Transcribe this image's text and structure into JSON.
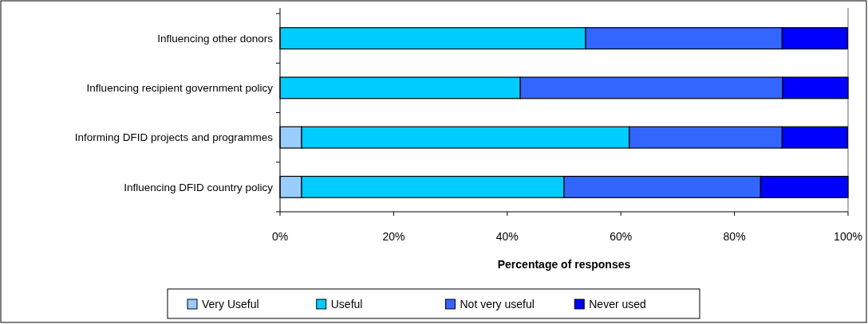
{
  "chart_data": {
    "type": "bar",
    "orientation": "horizontal",
    "stacked": true,
    "categories": [
      "Influencing other donors",
      "Influencing recipient government policy",
      "Informing DFID projects and programmes",
      "Influencing DFID country policy"
    ],
    "series": [
      {
        "name": "Very Useful",
        "color": "#99ccff",
        "values": [
          0,
          0,
          3.8,
          3.8
        ]
      },
      {
        "name": "Useful",
        "color": "#00ccff",
        "values": [
          53.8,
          42.3,
          57.7,
          46.2
        ]
      },
      {
        "name": "Not very useful",
        "color": "#3366ff",
        "values": [
          34.6,
          46.2,
          26.9,
          34.6
        ]
      },
      {
        "name": "Never used",
        "color": "#0000ff",
        "values": [
          11.5,
          11.5,
          11.5,
          15.4
        ]
      }
    ],
    "xlim": [
      0,
      100
    ],
    "xticks": [
      {
        "value": 0,
        "label": "0%"
      },
      {
        "value": 20,
        "label": "20%"
      },
      {
        "value": 40,
        "label": "40%"
      },
      {
        "value": 60,
        "label": "60%"
      },
      {
        "value": 80,
        "label": "80%"
      },
      {
        "value": 100,
        "label": "100%"
      }
    ],
    "xlabel": "Percentage of responses",
    "legend": "bottom",
    "grid": false
  }
}
